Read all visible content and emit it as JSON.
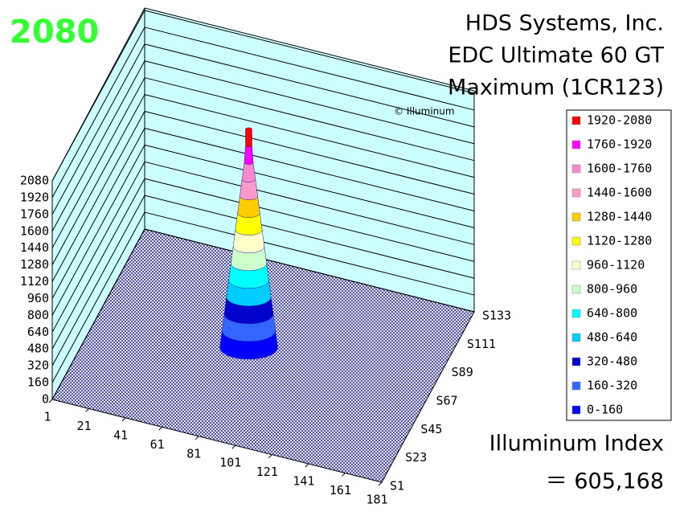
{
  "chart_data": {
    "type": "surface3d",
    "peak_value": 2080,
    "title_lines": [
      "HDS Systems, Inc.",
      "EDC Ultimate 60 GT",
      "Maximum (1CR123)"
    ],
    "watermark": "© Illuminum",
    "index_label": "Illuminum Index",
    "index_value": "＝ 605,168",
    "zlim": [
      0,
      2080
    ],
    "zticks": [
      0,
      160,
      320,
      480,
      640,
      800,
      960,
      1120,
      1280,
      1440,
      1600,
      1760,
      1920,
      2080
    ],
    "xlim": [
      1,
      181
    ],
    "xticks": [
      1,
      21,
      41,
      61,
      81,
      101,
      121,
      141,
      161,
      181
    ],
    "y_categories": [
      "S1",
      "S23",
      "S45",
      "S67",
      "S89",
      "S111",
      "S133"
    ],
    "grid": true,
    "legend": [
      {
        "label": "1920-2080",
        "color": "#ff0000"
      },
      {
        "label": "1760-1920",
        "color": "#ff00ff"
      },
      {
        "label": "1600-1760",
        "color": "#ff88cc"
      },
      {
        "label": "1440-1600",
        "color": "#ff99cc"
      },
      {
        "label": "1280-1440",
        "color": "#ffcc00"
      },
      {
        "label": "1120-1280",
        "color": "#ffff00"
      },
      {
        "label": "960-1120",
        "color": "#ffffcc"
      },
      {
        "label": "800-960",
        "color": "#ccffcc"
      },
      {
        "label": "640-800",
        "color": "#00ffff"
      },
      {
        "label": "480-640",
        "color": "#00ccff"
      },
      {
        "label": "320-480",
        "color": "#0000cc"
      },
      {
        "label": "160-320",
        "color": "#3366ff"
      },
      {
        "label": "0-160",
        "color": "#0000ff"
      }
    ]
  }
}
